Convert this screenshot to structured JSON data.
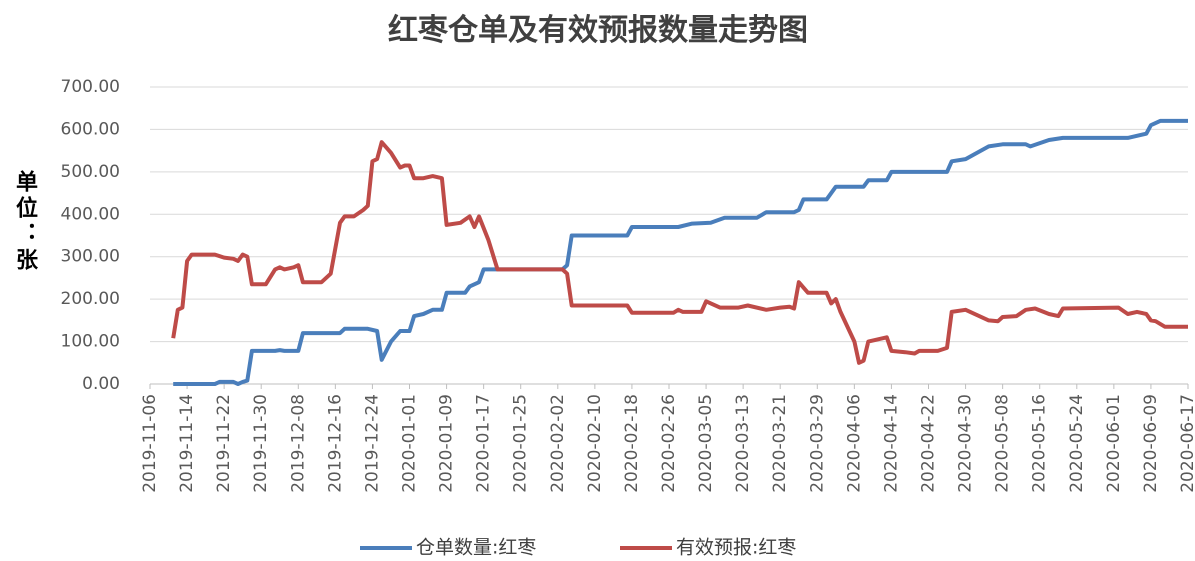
{
  "chart_data": {
    "type": "line",
    "title": "红枣仓单及有效预报数量走势图",
    "y_label": "单位：张",
    "xlim": [
      "2019-11-06",
      "2020-06-17"
    ],
    "xticks": [
      "2019-11-06",
      "2019-11-14",
      "2019-11-22",
      "2019-11-30",
      "2019-12-08",
      "2019-12-16",
      "2019-12-24",
      "2020-01-01",
      "2020-01-09",
      "2020-01-17",
      "2020-01-25",
      "2020-02-02",
      "2020-02-10",
      "2020-02-18",
      "2020-02-26",
      "2020-03-05",
      "2020-03-13",
      "2020-03-21",
      "2020-03-29",
      "2020-04-06",
      "2020-04-14",
      "2020-04-22",
      "2020-04-30",
      "2020-05-08",
      "2020-05-16",
      "2020-05-24",
      "2020-06-01",
      "2020-06-09",
      "2020-06-17"
    ],
    "ylim": [
      0,
      700
    ],
    "yticks": [
      {
        "value": 0,
        "label": "0.00"
      },
      {
        "value": 100,
        "label": "100.00"
      },
      {
        "value": 200,
        "label": "200.00"
      },
      {
        "value": 300,
        "label": "300.00"
      },
      {
        "value": 400,
        "label": "400.00"
      },
      {
        "value": 500,
        "label": "500.00"
      },
      {
        "value": 600,
        "label": "600.00"
      },
      {
        "value": 700,
        "label": "700.00"
      }
    ],
    "grid": true,
    "legend": "bottom",
    "series": [
      {
        "name": "仓单数量:红枣",
        "color": "#4a7ebb",
        "x": [
          "2019-11-11",
          "2019-11-20",
          "2019-11-21",
          "2019-11-24",
          "2019-11-25",
          "2019-11-26",
          "2019-11-27",
          "2019-11-28",
          "2019-12-03",
          "2019-12-04",
          "2019-12-05",
          "2019-12-08",
          "2019-12-09",
          "2019-12-17",
          "2019-12-18",
          "2019-12-23",
          "2019-12-25",
          "2019-12-26",
          "2019-12-28",
          "2019-12-30",
          "2020-01-01",
          "2020-01-02",
          "2020-01-04",
          "2020-01-06",
          "2020-01-08",
          "2020-01-09",
          "2020-01-13",
          "2020-01-14",
          "2020-01-16",
          "2020-01-17",
          "2020-02-03",
          "2020-02-04",
          "2020-02-05",
          "2020-02-17",
          "2020-02-18",
          "2020-02-28",
          "2020-03-02",
          "2020-03-06",
          "2020-03-09",
          "2020-03-16",
          "2020-03-18",
          "2020-03-24",
          "2020-03-25",
          "2020-03-26",
          "2020-03-31",
          "2020-04-02",
          "2020-04-08",
          "2020-04-09",
          "2020-04-13",
          "2020-04-14",
          "2020-04-26",
          "2020-04-27",
          "2020-04-30",
          "2020-05-05",
          "2020-05-08",
          "2020-05-13",
          "2020-05-14",
          "2020-05-18",
          "2020-05-21",
          "2020-06-04",
          "2020-06-08",
          "2020-06-09",
          "2020-06-11",
          "2020-06-17"
        ],
        "values": [
          0,
          0,
          5,
          5,
          0,
          5,
          8,
          78,
          78,
          80,
          78,
          78,
          120,
          120,
          130,
          130,
          125,
          57,
          100,
          125,
          125,
          160,
          165,
          175,
          175,
          215,
          215,
          230,
          240,
          270,
          270,
          280,
          350,
          350,
          370,
          370,
          378,
          380,
          392,
          392,
          405,
          405,
          410,
          435,
          435,
          465,
          465,
          480,
          480,
          500,
          500,
          525,
          530,
          560,
          565,
          565,
          560,
          575,
          580,
          580,
          590,
          610,
          620,
          620
        ]
      },
      {
        "name": "有效预报:红枣",
        "color": "#be4b48",
        "x": [
          "2019-11-11",
          "2019-11-12",
          "2019-11-13",
          "2019-11-14",
          "2019-11-15",
          "2019-11-20",
          "2019-11-22",
          "2019-11-24",
          "2019-11-25",
          "2019-11-26",
          "2019-11-27",
          "2019-11-28",
          "2019-12-01",
          "2019-12-03",
          "2019-12-04",
          "2019-12-05",
          "2019-12-07",
          "2019-12-08",
          "2019-12-09",
          "2019-12-13",
          "2019-12-15",
          "2019-12-17",
          "2019-12-18",
          "2019-12-20",
          "2019-12-22",
          "2019-12-23",
          "2019-12-24",
          "2019-12-25",
          "2019-12-26",
          "2019-12-28",
          "2019-12-30",
          "2019-12-31",
          "2020-01-01",
          "2020-01-02",
          "2020-01-04",
          "2020-01-06",
          "2020-01-08",
          "2020-01-09",
          "2020-01-12",
          "2020-01-14",
          "2020-01-15",
          "2020-01-16",
          "2020-01-18",
          "2020-01-20",
          "2020-02-03",
          "2020-02-04",
          "2020-02-05",
          "2020-02-17",
          "2020-02-18",
          "2020-02-27",
          "2020-02-28",
          "2020-02-29",
          "2020-03-04",
          "2020-03-05",
          "2020-03-08",
          "2020-03-12",
          "2020-03-14",
          "2020-03-18",
          "2020-03-21",
          "2020-03-23",
          "2020-03-24",
          "2020-03-25",
          "2020-03-27",
          "2020-03-31",
          "2020-04-01",
          "2020-04-02",
          "2020-04-03",
          "2020-04-06",
          "2020-04-07",
          "2020-04-08",
          "2020-04-09",
          "2020-04-13",
          "2020-04-14",
          "2020-04-17",
          "2020-04-19",
          "2020-04-20",
          "2020-04-24",
          "2020-04-26",
          "2020-04-27",
          "2020-04-30",
          "2020-05-05",
          "2020-05-07",
          "2020-05-08",
          "2020-05-11",
          "2020-05-13",
          "2020-05-15",
          "2020-05-18",
          "2020-05-20",
          "2020-05-21",
          "2020-06-02",
          "2020-06-04",
          "2020-06-06",
          "2020-06-08",
          "2020-06-09",
          "2020-06-10",
          "2020-06-12",
          "2020-06-17"
        ],
        "values": [
          108,
          175,
          180,
          290,
          305,
          305,
          298,
          295,
          290,
          305,
          300,
          235,
          235,
          270,
          275,
          270,
          275,
          280,
          240,
          240,
          260,
          380,
          395,
          395,
          410,
          420,
          525,
          530,
          570,
          545,
          510,
          515,
          515,
          485,
          485,
          490,
          485,
          375,
          380,
          395,
          370,
          395,
          340,
          270,
          270,
          260,
          185,
          185,
          168,
          168,
          175,
          170,
          170,
          195,
          180,
          180,
          185,
          175,
          180,
          182,
          178,
          240,
          215,
          215,
          190,
          200,
          170,
          100,
          50,
          55,
          100,
          110,
          78,
          75,
          72,
          78,
          78,
          85,
          170,
          175,
          150,
          148,
          158,
          160,
          175,
          178,
          165,
          160,
          178,
          180,
          165,
          170,
          165,
          150,
          148,
          135,
          135
        ]
      }
    ]
  }
}
